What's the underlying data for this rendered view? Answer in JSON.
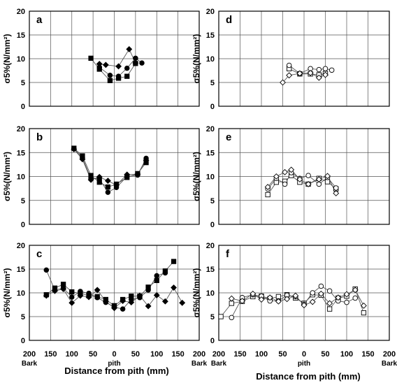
{
  "figure": {
    "xlabel": "Distance from pith (mm)",
    "ylabel": "σ5%(N/mm²)",
    "x_tick_labels": [
      "200",
      "150",
      "100",
      "50",
      "0",
      "50",
      "100",
      "150",
      "200"
    ],
    "x_tick_sublabels": {
      "left": "Bark",
      "center": "pith",
      "right": "Bark"
    },
    "colors": {
      "line": "#555555",
      "grid": "#555555",
      "marker": "#000000"
    }
  },
  "chart_data": [
    {
      "id": "a",
      "label": "a",
      "type": "line",
      "column": "left",
      "row": 0,
      "xlim": [
        -200,
        200
      ],
      "ylim": [
        0,
        20
      ],
      "yticks": [
        0,
        5,
        10,
        15,
        20
      ],
      "grid": true,
      "series": [
        {
          "marker": "square-filled",
          "x": [
            -55,
            -35,
            -10,
            10,
            30,
            50
          ],
          "y": [
            10.1,
            7.8,
            5.4,
            5.9,
            6.3,
            9.0
          ]
        },
        {
          "marker": "circle-filled",
          "x": [
            -35,
            -10,
            10,
            30,
            50,
            65
          ],
          "y": [
            8.2,
            6.5,
            6.3,
            8.0,
            10.1,
            9.1
          ]
        },
        {
          "marker": "diamond-filled",
          "x": [
            -35,
            -20,
            10,
            35,
            50
          ],
          "y": [
            8.9,
            8.7,
            8.4,
            12.0,
            9.1
          ]
        }
      ]
    },
    {
      "id": "b",
      "label": "b",
      "type": "line",
      "column": "left",
      "row": 1,
      "xlim": [
        -200,
        200
      ],
      "ylim": [
        0,
        20
      ],
      "yticks": [
        0,
        5,
        10,
        15,
        20
      ],
      "grid": true,
      "series": [
        {
          "marker": "square-filled",
          "x": [
            -95,
            -75,
            -55,
            -35,
            -15,
            5,
            30,
            55,
            75
          ],
          "y": [
            15.9,
            14.3,
            10.2,
            8.8,
            7.8,
            8.4,
            9.8,
            10.6,
            12.9
          ]
        },
        {
          "marker": "circle-filled",
          "x": [
            -95,
            -75,
            -55,
            -35,
            -15,
            5,
            30,
            55,
            75
          ],
          "y": [
            15.8,
            13.9,
            9.6,
            9.5,
            6.7,
            7.7,
            10.0,
            10.3,
            13.8
          ]
        },
        {
          "marker": "diamond-filled",
          "x": [
            -95,
            -75,
            -55,
            -35,
            -15,
            5,
            30,
            55,
            75
          ],
          "y": [
            15.7,
            13.6,
            9.3,
            9.9,
            9.1,
            8.2,
            10.4,
            10.5,
            13.4
          ]
        }
      ]
    },
    {
      "id": "c",
      "label": "c",
      "type": "line",
      "column": "left",
      "row": 2,
      "xlim": [
        -200,
        200
      ],
      "ylim": [
        0,
        20
      ],
      "yticks": [
        0,
        5,
        10,
        15,
        20
      ],
      "grid": true,
      "series": [
        {
          "marker": "square-filled",
          "x": [
            -160,
            -140,
            -120,
            -100,
            -80,
            -60,
            -40,
            -20,
            0,
            20,
            40,
            60,
            80,
            100,
            120,
            140
          ],
          "y": [
            9.6,
            11.0,
            11.8,
            10.2,
            9.9,
            9.4,
            9.2,
            8.6,
            7.3,
            8.6,
            9.3,
            9.3,
            11.2,
            12.6,
            14.6,
            16.6
          ]
        },
        {
          "marker": "circle-filled",
          "x": [
            -160,
            -140,
            -120,
            -100,
            -80,
            -60,
            -40,
            -20,
            0,
            20,
            40,
            60,
            80,
            100,
            120
          ],
          "y": [
            14.8,
            10.6,
            11.0,
            9.1,
            10.3,
            9.9,
            9.0,
            8.0,
            7.0,
            6.6,
            8.6,
            9.0,
            10.6,
            13.6,
            14.2
          ]
        },
        {
          "marker": "diamond-filled",
          "x": [
            -160,
            -140,
            -120,
            -100,
            -80,
            -60,
            -40,
            -20,
            0,
            20,
            40,
            60,
            80,
            100,
            120,
            140,
            160
          ],
          "y": [
            9.4,
            10.4,
            10.8,
            7.9,
            9.4,
            9.1,
            10.6,
            8.2,
            6.8,
            8.3,
            8.0,
            9.4,
            7.2,
            9.5,
            8.2,
            11.1,
            7.9
          ]
        }
      ]
    },
    {
      "id": "d",
      "label": "d",
      "type": "line",
      "column": "right",
      "row": 0,
      "xlim": [
        -200,
        200
      ],
      "ylim": [
        0,
        20
      ],
      "yticks": [
        0,
        5,
        10,
        15,
        20
      ],
      "grid": true,
      "series": [
        {
          "marker": "square-open",
          "x": [
            -35,
            -10,
            15,
            35,
            50
          ],
          "y": [
            7.9,
            6.8,
            6.8,
            6.6,
            6.9
          ]
        },
        {
          "marker": "circle-open",
          "x": [
            -35,
            -10,
            15,
            35,
            50,
            65
          ],
          "y": [
            8.6,
            6.9,
            7.9,
            7.7,
            7.9,
            7.6
          ]
        },
        {
          "marker": "diamond-open",
          "x": [
            -50,
            -35,
            -10,
            15,
            35,
            50
          ],
          "y": [
            5.0,
            6.5,
            6.9,
            7.0,
            6.0,
            6.6
          ]
        }
      ]
    },
    {
      "id": "e",
      "label": "e",
      "type": "line",
      "column": "right",
      "row": 1,
      "xlim": [
        -200,
        200
      ],
      "ylim": [
        0,
        20
      ],
      "yticks": [
        0,
        5,
        10,
        15,
        20
      ],
      "grid": true,
      "series": [
        {
          "marker": "square-open",
          "x": [
            -85,
            -65,
            -45,
            -30,
            -10,
            10,
            35,
            55,
            75
          ],
          "y": [
            6.2,
            8.8,
            9.0,
            10.2,
            8.8,
            8.4,
            9.6,
            8.9,
            7.4
          ]
        },
        {
          "marker": "circle-open",
          "x": [
            -85,
            -65,
            -45,
            -30,
            -10,
            10,
            35,
            55,
            75
          ],
          "y": [
            7.4,
            9.6,
            8.4,
            10.8,
            9.6,
            10.2,
            8.4,
            9.8,
            7.6
          ]
        },
        {
          "marker": "diamond-open",
          "x": [
            -85,
            -65,
            -45,
            -30,
            -10,
            10,
            35,
            55,
            75
          ],
          "y": [
            7.8,
            10.0,
            10.9,
            11.4,
            9.4,
            8.4,
            9.4,
            10.1,
            6.5
          ]
        }
      ]
    },
    {
      "id": "f",
      "label": "f",
      "type": "line",
      "column": "right",
      "row": 2,
      "xlim": [
        -200,
        200
      ],
      "ylim": [
        0,
        20
      ],
      "yticks": [
        0,
        5,
        10,
        15,
        20
      ],
      "grid": true,
      "series": [
        {
          "marker": "square-open",
          "x": [
            -195,
            -170,
            -145,
            -120,
            -100,
            -80,
            -60,
            -40,
            -20,
            0,
            20,
            40,
            60,
            80,
            100,
            120,
            140
          ],
          "y": [
            5.0,
            7.8,
            8.2,
            9.2,
            9.3,
            8.8,
            9.2,
            9.6,
            8.9,
            7.8,
            9.6,
            9.5,
            6.6,
            8.9,
            9.3,
            10.8,
            5.8
          ]
        },
        {
          "marker": "circle-open",
          "x": [
            -170,
            -145,
            -120,
            -100,
            -80,
            -60,
            -40,
            -20,
            0,
            20,
            40,
            60,
            80,
            100,
            120
          ],
          "y": [
            4.8,
            9.0,
            9.6,
            9.3,
            8.3,
            8.3,
            9.5,
            9.2,
            7.6,
            10.0,
            11.4,
            10.4,
            8.3,
            8.0,
            8.9
          ]
        },
        {
          "marker": "diamond-open",
          "x": [
            -170,
            -145,
            -120,
            -100,
            -80,
            -60,
            -40,
            -20,
            0,
            20,
            40,
            60,
            80,
            100,
            120,
            140
          ],
          "y": [
            8.8,
            8.3,
            9.8,
            8.6,
            9.0,
            8.2,
            8.7,
            9.4,
            7.4,
            8.1,
            9.8,
            7.8,
            9.0,
            9.7,
            10.6,
            7.3
          ]
        }
      ]
    }
  ]
}
